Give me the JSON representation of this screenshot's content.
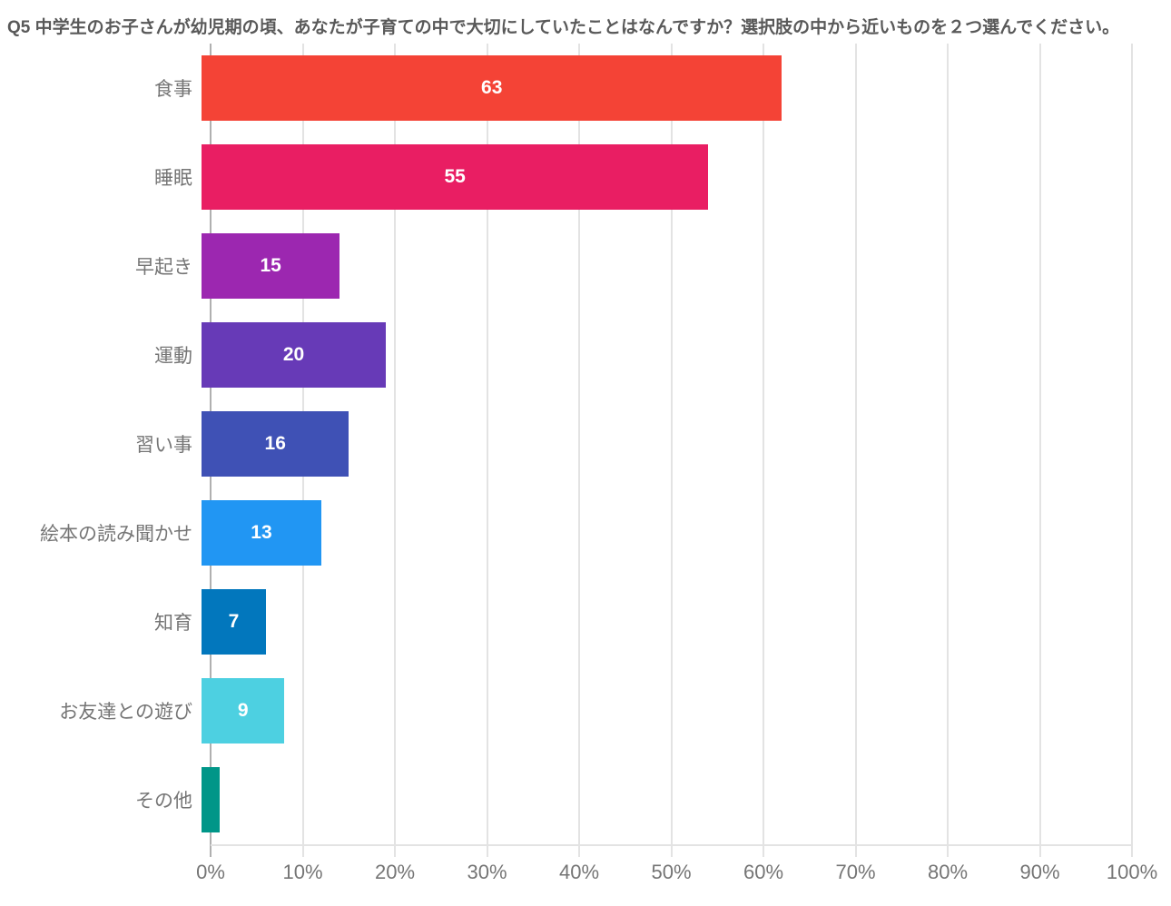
{
  "title": "Q5 中学生のお子さんが幼児期の頃、あなたが子育ての中で大切にしていたことはなんですか？選択肢の中から近いものを２つ選んでください。",
  "chart_data": {
    "type": "bar",
    "orientation": "horizontal",
    "title": "Q5 中学生のお子さんが幼児期の頃、あなたが子育ての中で大切にしていたことはなんですか？選択肢の中から近いものを２つ選んでください。",
    "categories": [
      "食事",
      "睡眠",
      "早起き",
      "運動",
      "習い事",
      "絵本の読み聞かせ",
      "知育",
      "お友達との遊び",
      "その他"
    ],
    "values": [
      63,
      55,
      15,
      20,
      16,
      13,
      7,
      9,
      2
    ],
    "value_labels": [
      "63",
      "55",
      "15",
      "20",
      "16",
      "13",
      "7",
      "9",
      ""
    ],
    "bar_colors": [
      "#f44336",
      "#e91e63",
      "#9c27b0",
      "#673ab7",
      "#3f51b5",
      "#2196f3",
      "#0277bd",
      "#4dd0e1",
      "#009688"
    ],
    "xlabel": "",
    "ylabel": "",
    "xlim": [
      0,
      100
    ],
    "x_ticks": [
      "0%",
      "10%",
      "20%",
      "30%",
      "40%",
      "50%",
      "60%",
      "70%",
      "80%",
      "90%",
      "100%"
    ],
    "grid": true,
    "legend": "none",
    "value_label_color": "#ffffff"
  },
  "colors": {
    "background": "#ffffff",
    "title_text": "#595959",
    "axis_text": "#757575",
    "gridline": "#e3e3e3",
    "axis_line": "#b0b0b0"
  }
}
